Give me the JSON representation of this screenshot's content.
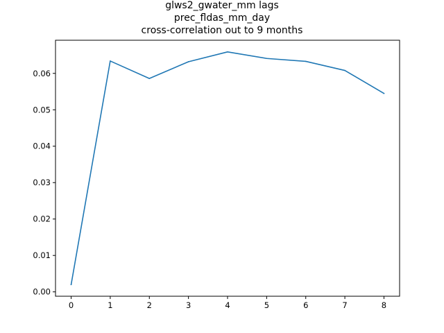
{
  "chart_data": {
    "type": "line",
    "title_lines": [
      "glws2_gwater_mm lags",
      "prec_fldas_mm_day",
      "cross-correlation out to 9 months"
    ],
    "xlabel": "",
    "ylabel": "",
    "x": [
      0,
      1,
      2,
      3,
      4,
      5,
      6,
      7,
      8
    ],
    "series": [
      {
        "values": [
          0.002,
          0.0634,
          0.0586,
          0.0632,
          0.0659,
          0.0641,
          0.0633,
          0.0608,
          0.0545
        ],
        "color": "#1f77b4"
      }
    ],
    "xlim": [
      -0.4,
      8.4
    ],
    "ylim": [
      -0.0012,
      0.0691
    ],
    "xticks": [
      0,
      1,
      2,
      3,
      4,
      5,
      6,
      7,
      8
    ],
    "xtick_labels": [
      "0",
      "1",
      "2",
      "3",
      "4",
      "5",
      "6",
      "7",
      "8"
    ],
    "yticks": [
      0.0,
      0.01,
      0.02,
      0.03,
      0.04,
      0.05,
      0.06
    ],
    "ytick_labels": [
      "0.00",
      "0.01",
      "0.02",
      "0.03",
      "0.04",
      "0.05",
      "0.06"
    ],
    "grid": false,
    "legend": "none"
  }
}
